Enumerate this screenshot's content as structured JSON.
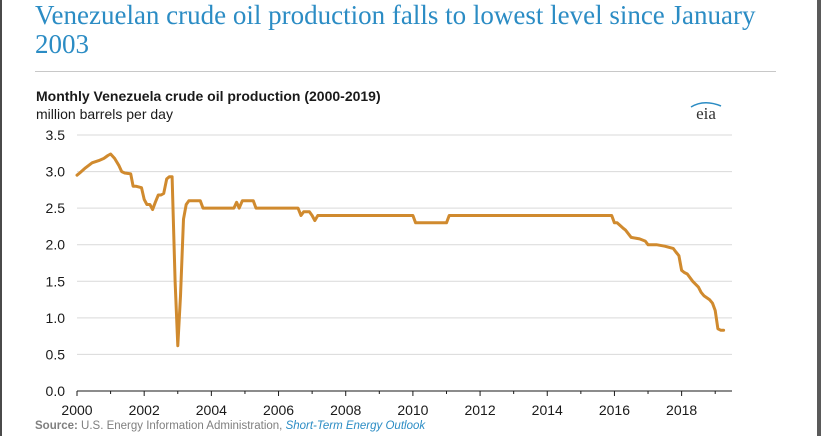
{
  "headline": "Venezuelan crude oil production falls to lowest level since January 2003",
  "logo_text": "eia",
  "source": {
    "label": "Source:",
    "text": " U.S. Energy Information Administration, ",
    "link_text": "Short-Term Energy Outlook"
  },
  "chart_data": {
    "type": "line",
    "title": "Monthly Venezuela crude oil production (2000-2019)",
    "ylabel": "million barrels per day",
    "xlabel": "",
    "xlim": [
      2000,
      2019.5
    ],
    "ylim": [
      0,
      3.5
    ],
    "x_ticks": [
      "2000",
      "2002",
      "2004",
      "2006",
      "2008",
      "2010",
      "2012",
      "2014",
      "2016",
      "2018"
    ],
    "y_ticks": [
      "0.0",
      "0.5",
      "1.0",
      "1.5",
      "2.0",
      "2.5",
      "3.0",
      "3.5"
    ],
    "grid": "horizontal",
    "line_color": "#d08a2e",
    "series": [
      {
        "x": [
          2000.0,
          2000.08,
          2000.25,
          2000.45,
          2000.65,
          2000.8,
          2000.92,
          2001.0,
          2001.12,
          2001.25,
          2001.33,
          2001.42,
          2001.6,
          2001.67,
          2001.75,
          2001.92,
          2002.0,
          2002.08,
          2002.17,
          2002.25,
          2002.33,
          2002.42,
          2002.5,
          2002.58,
          2002.67,
          2002.75,
          2002.83,
          2002.92,
          2003.0,
          2003.08,
          2003.17,
          2003.25,
          2003.33,
          2003.42,
          2003.5,
          2003.58,
          2003.67,
          2003.75,
          2003.83,
          2003.92,
          2004.0,
          2004.33,
          2004.67,
          2004.75,
          2004.83,
          2004.92,
          2005.0,
          2005.08,
          2005.25,
          2005.33,
          2005.42,
          2005.5,
          2006.0,
          2006.42,
          2006.5,
          2006.58,
          2006.67,
          2006.75,
          2006.83,
          2006.92,
          2007.0,
          2007.08,
          2007.17,
          2007.25,
          2008.0,
          2009.0,
          2010.0,
          2010.08,
          2011.0,
          2011.08,
          2012.0,
          2014.0,
          2015.0,
          2015.92,
          2016.0,
          2016.08,
          2016.25,
          2016.33,
          2016.5,
          2016.75,
          2016.92,
          2017.0,
          2017.25,
          2017.5,
          2017.58,
          2017.75,
          2017.83,
          2017.92,
          2018.0,
          2018.08,
          2018.17,
          2018.33,
          2018.5,
          2018.58,
          2018.67,
          2018.83,
          2018.92,
          2019.0,
          2019.08,
          2019.17,
          2019.25
        ],
        "y": [
          2.95,
          2.98,
          3.05,
          3.12,
          3.15,
          3.18,
          3.22,
          3.24,
          3.18,
          3.08,
          3.0,
          2.98,
          2.97,
          2.8,
          2.8,
          2.78,
          2.62,
          2.55,
          2.55,
          2.48,
          2.58,
          2.68,
          2.68,
          2.7,
          2.9,
          2.93,
          2.93,
          1.5,
          0.62,
          1.3,
          2.35,
          2.55,
          2.6,
          2.6,
          2.6,
          2.6,
          2.6,
          2.5,
          2.5,
          2.5,
          2.5,
          2.5,
          2.5,
          2.58,
          2.5,
          2.6,
          2.6,
          2.6,
          2.6,
          2.5,
          2.5,
          2.5,
          2.5,
          2.5,
          2.5,
          2.5,
          2.4,
          2.45,
          2.45,
          2.45,
          2.4,
          2.33,
          2.4,
          2.4,
          2.4,
          2.4,
          2.4,
          2.3,
          2.3,
          2.4,
          2.4,
          2.4,
          2.4,
          2.4,
          2.3,
          2.3,
          2.23,
          2.2,
          2.1,
          2.08,
          2.05,
          2.0,
          2.0,
          1.98,
          1.97,
          1.95,
          1.9,
          1.85,
          1.65,
          1.62,
          1.6,
          1.5,
          1.42,
          1.35,
          1.3,
          1.25,
          1.2,
          1.1,
          0.85,
          0.83,
          0.83
        ]
      }
    ]
  }
}
